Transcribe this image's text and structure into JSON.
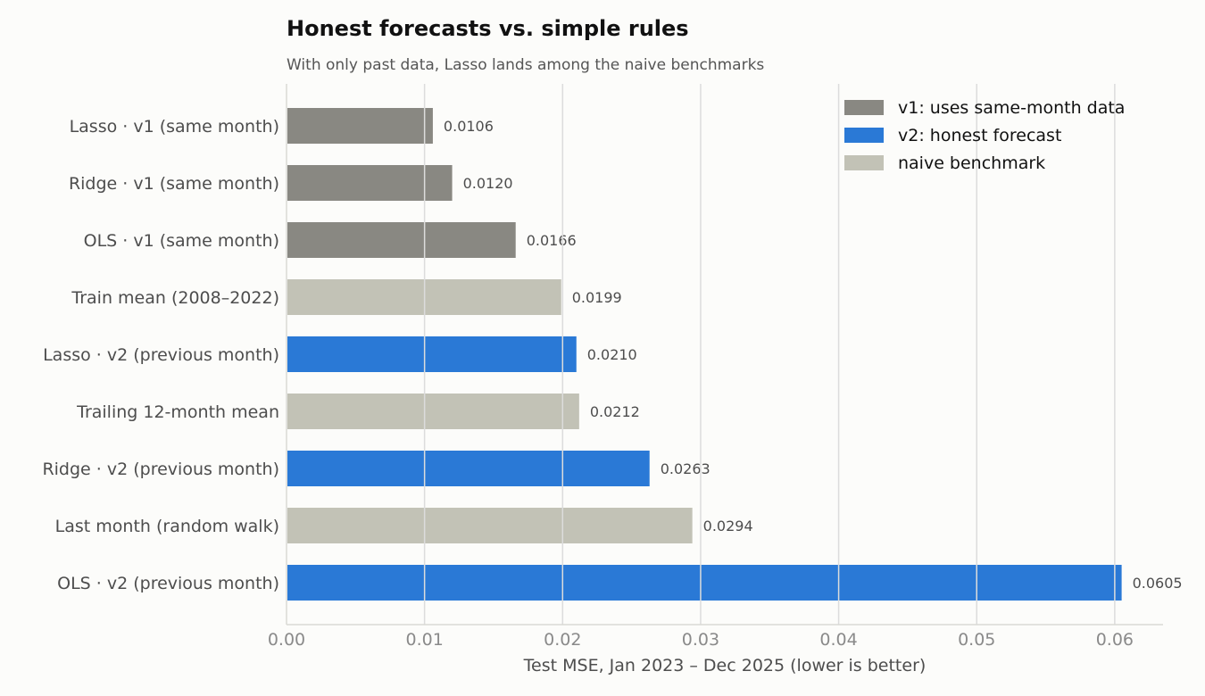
{
  "chart_data": {
    "type": "bar",
    "orientation": "horizontal",
    "title": "Honest forecasts vs. simple rules",
    "subtitle": "With only past data, Lasso lands among the naive benchmarks",
    "xlabel": "Test MSE, Jan 2023 – Dec 2025 (lower is better)",
    "ylabel": "",
    "xlim": [
      0,
      0.0635
    ],
    "x_ticks": [
      0,
      0.01,
      0.02,
      0.03,
      0.04,
      0.05,
      0.06
    ],
    "x_tick_labels": [
      "0.00",
      "0.01",
      "0.02",
      "0.03",
      "0.04",
      "0.05",
      "0.06"
    ],
    "grid": "vertical",
    "legend_position": "top-right",
    "categories": [
      "Lasso · v1 (same month)",
      "Ridge · v1 (same month)",
      "OLS · v1 (same month)",
      "Train mean (2008–2022)",
      "Lasso · v2 (previous month)",
      "Trailing 12-month mean",
      "Ridge · v2 (previous month)",
      "Last month (random walk)",
      "OLS · v2 (previous month)"
    ],
    "values": [
      0.0106,
      0.012,
      0.0166,
      0.0199,
      0.021,
      0.0212,
      0.0263,
      0.0294,
      0.0605
    ],
    "value_labels": [
      "0.0106",
      "0.0120",
      "0.0166",
      "0.0199",
      "0.0210",
      "0.0212",
      "0.0263",
      "0.0294",
      "0.0605"
    ],
    "groups": [
      "v1",
      "v1",
      "v1",
      "naive",
      "v2",
      "naive",
      "v2",
      "naive",
      "v2"
    ],
    "legend": [
      {
        "key": "v1",
        "label": "v1: uses same-month data",
        "color": "#898882"
      },
      {
        "key": "v2",
        "label": "v2: honest forecast",
        "color": "#2a79d6"
      },
      {
        "key": "naive",
        "label": "naive benchmark",
        "color": "#c2c2b6"
      }
    ]
  }
}
